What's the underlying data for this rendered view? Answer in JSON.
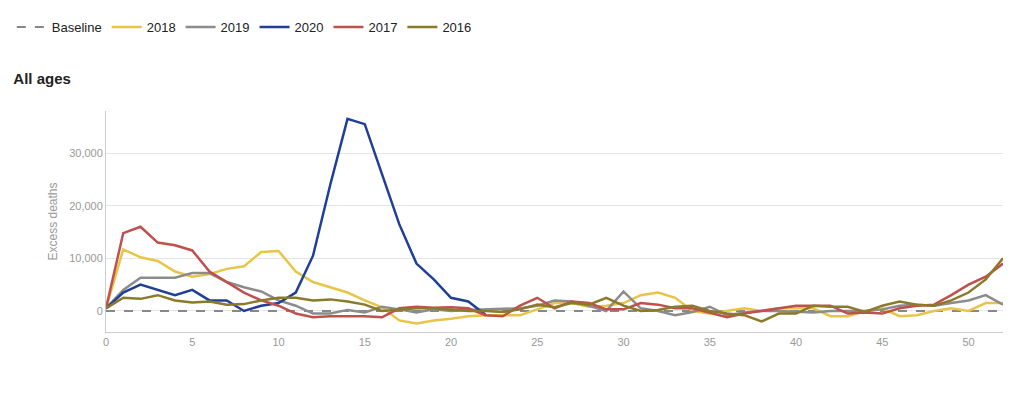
{
  "chart_data": {
    "type": "line",
    "title": "All ages",
    "y_label": "Excess deaths",
    "x": [
      0,
      1,
      2,
      3,
      4,
      5,
      6,
      7,
      8,
      9,
      10,
      11,
      12,
      13,
      14,
      15,
      16,
      17,
      18,
      19,
      20,
      21,
      22,
      23,
      24,
      25,
      26,
      27,
      28,
      29,
      30,
      31,
      32,
      33,
      34,
      35,
      36,
      37,
      38,
      39,
      40,
      41,
      42,
      43,
      44,
      45,
      46,
      47,
      48,
      49,
      50,
      51,
      52
    ],
    "xlim": [
      0,
      52
    ],
    "xticks": [
      0,
      5,
      10,
      15,
      20,
      25,
      30,
      35,
      40,
      45,
      50
    ],
    "ylim": [
      -4000,
      38000
    ],
    "yticks": [
      0,
      {
        "value": 10000,
        "label": "10,000"
      },
      {
        "value": 20000,
        "label": "20,000"
      },
      {
        "value": 30000,
        "label": "30,000"
      }
    ],
    "grid": true,
    "legend": "top left",
    "series": [
      {
        "name": "Baseline",
        "color": "#888888",
        "line_style": "dashed",
        "values": [
          0,
          0,
          0,
          0,
          0,
          0,
          0,
          0,
          0,
          0,
          0,
          0,
          0,
          0,
          0,
          0,
          0,
          0,
          0,
          0,
          0,
          0,
          0,
          0,
          0,
          0,
          0,
          0,
          0,
          0,
          0,
          0,
          0,
          0,
          0,
          0,
          0,
          0,
          0,
          0,
          0,
          0,
          0,
          0,
          0,
          0,
          0,
          0,
          0,
          0,
          0,
          0,
          0
        ]
      },
      {
        "name": "2018",
        "color": "#e8c547",
        "line_style": "solid",
        "values": [
          500,
          11700,
          10200,
          9500,
          7500,
          6500,
          7000,
          8000,
          8500,
          11200,
          11400,
          7500,
          5500,
          4500,
          3500,
          2000,
          700,
          -1800,
          -2400,
          -1800,
          -1500,
          -1000,
          -800,
          -800,
          -800,
          300,
          1500,
          1500,
          800,
          1000,
          1500,
          3000,
          3500,
          2500,
          0,
          -500,
          0,
          500,
          0,
          500,
          500,
          500,
          -1000,
          -1000,
          0,
          500,
          -1000,
          -800,
          0,
          500,
          0,
          1500,
          1500
        ]
      },
      {
        "name": "2019",
        "color": "#8c8c8c",
        "line_style": "solid",
        "values": [
          500,
          4000,
          6300,
          6300,
          6300,
          7200,
          7200,
          5500,
          4500,
          3700,
          2000,
          1000,
          -500,
          -500,
          200,
          -300,
          800,
          300,
          -300,
          300,
          0,
          200,
          300,
          500,
          500,
          1000,
          2000,
          1800,
          1000,
          0,
          3700,
          500,
          0,
          -800,
          -200,
          800,
          -800,
          -300,
          0,
          0,
          -200,
          -300,
          0,
          0,
          0,
          300,
          1000,
          1200,
          1000,
          1500,
          2000,
          3000,
          1200
        ]
      },
      {
        "name": "2020",
        "color": "#1f3f99",
        "line_style": "solid",
        "values": [
          500,
          3500,
          5000,
          4000,
          3000,
          4000,
          2000,
          2000,
          0,
          1000,
          1500,
          3500,
          10500,
          24000,
          36500,
          35500,
          26000,
          16500,
          9000,
          6000,
          2500,
          1800,
          -700,
          null,
          null,
          null,
          null,
          null,
          null,
          null,
          null,
          null,
          null,
          null,
          null,
          null,
          null,
          null,
          null,
          null,
          null,
          null,
          null,
          null,
          null,
          null,
          null,
          null,
          null,
          null,
          null,
          null,
          null
        ]
      },
      {
        "name": "2017",
        "color": "#c0504d",
        "line_style": "solid",
        "values": [
          500,
          14800,
          16000,
          13000,
          12500,
          11500,
          7500,
          5500,
          3500,
          2000,
          1000,
          -500,
          -1200,
          -1000,
          -1000,
          -1000,
          -1200,
          500,
          800,
          600,
          700,
          500,
          -800,
          -1000,
          1000,
          2500,
          500,
          1800,
          1500,
          300,
          300,
          1500,
          1200,
          500,
          500,
          -300,
          -1200,
          -500,
          0,
          500,
          1000,
          1000,
          1000,
          -500,
          -300,
          -500,
          500,
          1000,
          1200,
          3000,
          5000,
          6500,
          9000
        ]
      },
      {
        "name": "2016",
        "color": "#8b7a2a",
        "line_style": "solid",
        "values": [
          500,
          2500,
          2300,
          3000,
          2000,
          1600,
          1800,
          1200,
          1300,
          2000,
          2500,
          2500,
          2000,
          2200,
          1800,
          1200,
          0,
          200,
          500,
          500,
          300,
          0,
          0,
          -200,
          300,
          1200,
          700,
          1500,
          1200,
          2500,
          1000,
          0,
          200,
          800,
          1000,
          0,
          -500,
          -800,
          -2000,
          -500,
          -500,
          1000,
          800,
          800,
          -200,
          1000,
          1800,
          1200,
          1000,
          2000,
          3500,
          6000,
          10000
        ]
      }
    ]
  }
}
